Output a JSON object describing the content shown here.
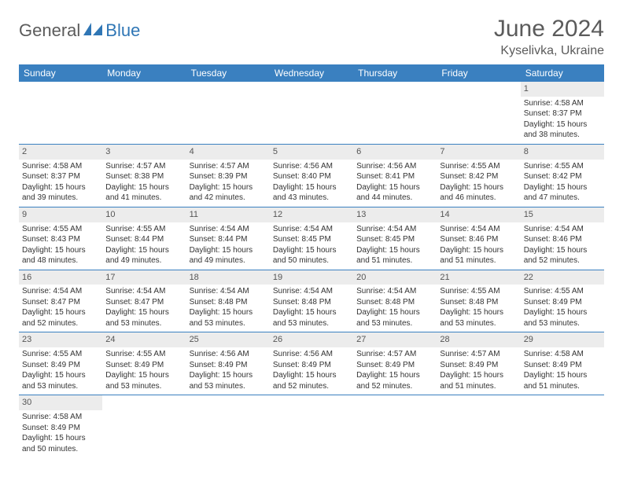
{
  "logo": {
    "part1": "General",
    "part2": "Blue"
  },
  "title": "June 2024",
  "location": "Kyselivka, Ukraine",
  "colors": {
    "header_bg": "#3a80c0",
    "header_text": "#ffffff",
    "daynum_bg": "#ececec",
    "border": "#3a80c0",
    "title_color": "#5b5b5b",
    "logo_gray": "#5b5b5b",
    "logo_blue": "#2f76b5"
  },
  "weekdays": [
    "Sunday",
    "Monday",
    "Tuesday",
    "Wednesday",
    "Thursday",
    "Friday",
    "Saturday"
  ],
  "weeks": [
    [
      null,
      null,
      null,
      null,
      null,
      null,
      {
        "d": "1",
        "sr": "4:58 AM",
        "ss": "8:37 PM",
        "dl": "15 hours and 38 minutes."
      }
    ],
    [
      {
        "d": "2",
        "sr": "4:58 AM",
        "ss": "8:37 PM",
        "dl": "15 hours and 39 minutes."
      },
      {
        "d": "3",
        "sr": "4:57 AM",
        "ss": "8:38 PM",
        "dl": "15 hours and 41 minutes."
      },
      {
        "d": "4",
        "sr": "4:57 AM",
        "ss": "8:39 PM",
        "dl": "15 hours and 42 minutes."
      },
      {
        "d": "5",
        "sr": "4:56 AM",
        "ss": "8:40 PM",
        "dl": "15 hours and 43 minutes."
      },
      {
        "d": "6",
        "sr": "4:56 AM",
        "ss": "8:41 PM",
        "dl": "15 hours and 44 minutes."
      },
      {
        "d": "7",
        "sr": "4:55 AM",
        "ss": "8:42 PM",
        "dl": "15 hours and 46 minutes."
      },
      {
        "d": "8",
        "sr": "4:55 AM",
        "ss": "8:42 PM",
        "dl": "15 hours and 47 minutes."
      }
    ],
    [
      {
        "d": "9",
        "sr": "4:55 AM",
        "ss": "8:43 PM",
        "dl": "15 hours and 48 minutes."
      },
      {
        "d": "10",
        "sr": "4:55 AM",
        "ss": "8:44 PM",
        "dl": "15 hours and 49 minutes."
      },
      {
        "d": "11",
        "sr": "4:54 AM",
        "ss": "8:44 PM",
        "dl": "15 hours and 49 minutes."
      },
      {
        "d": "12",
        "sr": "4:54 AM",
        "ss": "8:45 PM",
        "dl": "15 hours and 50 minutes."
      },
      {
        "d": "13",
        "sr": "4:54 AM",
        "ss": "8:45 PM",
        "dl": "15 hours and 51 minutes."
      },
      {
        "d": "14",
        "sr": "4:54 AM",
        "ss": "8:46 PM",
        "dl": "15 hours and 51 minutes."
      },
      {
        "d": "15",
        "sr": "4:54 AM",
        "ss": "8:46 PM",
        "dl": "15 hours and 52 minutes."
      }
    ],
    [
      {
        "d": "16",
        "sr": "4:54 AM",
        "ss": "8:47 PM",
        "dl": "15 hours and 52 minutes."
      },
      {
        "d": "17",
        "sr": "4:54 AM",
        "ss": "8:47 PM",
        "dl": "15 hours and 53 minutes."
      },
      {
        "d": "18",
        "sr": "4:54 AM",
        "ss": "8:48 PM",
        "dl": "15 hours and 53 minutes."
      },
      {
        "d": "19",
        "sr": "4:54 AM",
        "ss": "8:48 PM",
        "dl": "15 hours and 53 minutes."
      },
      {
        "d": "20",
        "sr": "4:54 AM",
        "ss": "8:48 PM",
        "dl": "15 hours and 53 minutes."
      },
      {
        "d": "21",
        "sr": "4:55 AM",
        "ss": "8:48 PM",
        "dl": "15 hours and 53 minutes."
      },
      {
        "d": "22",
        "sr": "4:55 AM",
        "ss": "8:49 PM",
        "dl": "15 hours and 53 minutes."
      }
    ],
    [
      {
        "d": "23",
        "sr": "4:55 AM",
        "ss": "8:49 PM",
        "dl": "15 hours and 53 minutes."
      },
      {
        "d": "24",
        "sr": "4:55 AM",
        "ss": "8:49 PM",
        "dl": "15 hours and 53 minutes."
      },
      {
        "d": "25",
        "sr": "4:56 AM",
        "ss": "8:49 PM",
        "dl": "15 hours and 53 minutes."
      },
      {
        "d": "26",
        "sr": "4:56 AM",
        "ss": "8:49 PM",
        "dl": "15 hours and 52 minutes."
      },
      {
        "d": "27",
        "sr": "4:57 AM",
        "ss": "8:49 PM",
        "dl": "15 hours and 52 minutes."
      },
      {
        "d": "28",
        "sr": "4:57 AM",
        "ss": "8:49 PM",
        "dl": "15 hours and 51 minutes."
      },
      {
        "d": "29",
        "sr": "4:58 AM",
        "ss": "8:49 PM",
        "dl": "15 hours and 51 minutes."
      }
    ],
    [
      {
        "d": "30",
        "sr": "4:58 AM",
        "ss": "8:49 PM",
        "dl": "15 hours and 50 minutes."
      },
      null,
      null,
      null,
      null,
      null,
      null
    ]
  ],
  "labels": {
    "sunrise": "Sunrise:",
    "sunset": "Sunset:",
    "daylight": "Daylight:"
  }
}
